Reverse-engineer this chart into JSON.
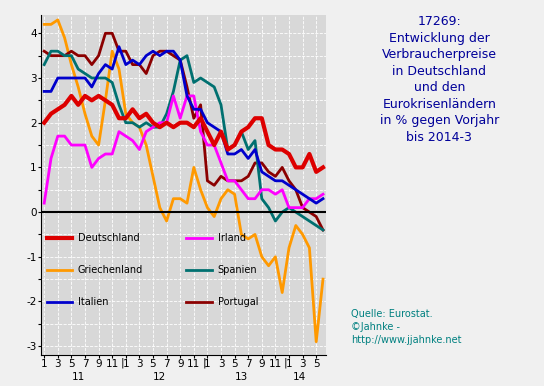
{
  "title_right": "17269:\nEntwicklung der\nVerbraucherpreise\nin Deutschland\nund den\nEurokrisenländern\nin % gegen Vorjahr\nbis 2014-3",
  "source_text": "Quelle: Eurostat.\n©Jahnke -\nhttp://www.jjahnke.net",
  "ylim": [
    -3.2,
    4.4
  ],
  "series": {
    "Deutschland": {
      "color": "#dd0000",
      "lw": 3.0,
      "data": [
        2.0,
        2.2,
        2.3,
        2.4,
        2.6,
        2.4,
        2.6,
        2.5,
        2.6,
        2.5,
        2.4,
        2.1,
        2.1,
        2.3,
        2.1,
        2.2,
        2.0,
        1.9,
        2.0,
        1.9,
        2.0,
        2.0,
        1.9,
        2.1,
        1.8,
        1.5,
        1.8,
        1.4,
        1.5,
        1.8,
        1.9,
        2.1,
        2.1,
        1.5,
        1.4,
        1.4,
        1.3,
        1.0,
        1.0,
        1.3,
        0.9,
        1.0
      ]
    },
    "Griechenland": {
      "color": "#ff9900",
      "lw": 2.0,
      "data": [
        4.2,
        4.2,
        4.3,
        3.9,
        3.3,
        2.8,
        2.2,
        1.7,
        1.5,
        2.5,
        3.6,
        3.2,
        2.2,
        2.0,
        1.9,
        1.5,
        0.8,
        0.1,
        -0.2,
        0.3,
        0.3,
        0.2,
        1.0,
        0.5,
        0.1,
        -0.1,
        0.3,
        0.5,
        0.4,
        -0.5,
        -0.6,
        -0.5,
        -1.0,
        -1.2,
        -1.0,
        -1.8,
        -0.8,
        -0.3,
        -0.5,
        -0.8,
        -2.9,
        -1.5
      ]
    },
    "Italien": {
      "color": "#0000cc",
      "lw": 2.0,
      "data": [
        2.7,
        2.7,
        3.0,
        3.0,
        3.0,
        3.0,
        3.0,
        2.8,
        3.1,
        3.3,
        3.2,
        3.7,
        3.3,
        3.4,
        3.3,
        3.5,
        3.6,
        3.5,
        3.6,
        3.6,
        3.4,
        2.6,
        2.3,
        2.3,
        2.0,
        1.9,
        1.8,
        1.3,
        1.3,
        1.4,
        1.2,
        1.4,
        0.9,
        0.8,
        0.7,
        0.7,
        0.6,
        0.5,
        0.4,
        0.3,
        0.2,
        0.3
      ]
    },
    "Irland": {
      "color": "#ff00ff",
      "lw": 2.0,
      "data": [
        0.2,
        1.2,
        1.7,
        1.7,
        1.5,
        1.5,
        1.5,
        1.0,
        1.2,
        1.3,
        1.3,
        1.8,
        1.7,
        1.6,
        1.4,
        1.8,
        1.9,
        2.0,
        2.0,
        2.6,
        2.1,
        2.6,
        2.6,
        1.8,
        1.5,
        1.5,
        1.1,
        0.7,
        0.7,
        0.5,
        0.3,
        0.3,
        0.5,
        0.5,
        0.4,
        0.5,
        0.1,
        0.1,
        0.1,
        0.3,
        0.3,
        0.4
      ]
    },
    "Spanien": {
      "color": "#007070",
      "lw": 2.0,
      "data": [
        3.3,
        3.6,
        3.6,
        3.5,
        3.5,
        3.2,
        3.1,
        3.0,
        3.0,
        3.0,
        2.9,
        2.4,
        2.0,
        2.0,
        1.9,
        2.0,
        1.9,
        1.9,
        2.2,
        2.7,
        3.4,
        3.5,
        2.9,
        3.0,
        2.9,
        2.8,
        2.4,
        1.4,
        1.5,
        1.8,
        1.4,
        1.6,
        0.3,
        0.1,
        -0.2,
        0.0,
        0.1,
        0.0,
        -0.1,
        -0.2,
        -0.3,
        -0.4
      ]
    },
    "Portugal": {
      "color": "#8B0000",
      "lw": 2.0,
      "data": [
        3.6,
        3.5,
        3.5,
        3.5,
        3.6,
        3.5,
        3.5,
        3.3,
        3.5,
        4.0,
        4.0,
        3.6,
        3.6,
        3.3,
        3.3,
        3.1,
        3.5,
        3.6,
        3.6,
        3.5,
        3.4,
        2.8,
        2.1,
        2.4,
        0.7,
        0.6,
        0.8,
        0.7,
        0.7,
        0.7,
        0.8,
        1.1,
        1.1,
        0.9,
        0.8,
        1.0,
        0.7,
        0.5,
        0.1,
        0.0,
        -0.1,
        -0.4
      ]
    }
  },
  "ytick_positions": [
    -3.0,
    -2.5,
    -2.0,
    -1.5,
    -1.0,
    -0.5,
    0.0,
    0.5,
    1.0,
    1.5,
    2.0,
    2.5,
    3.0,
    3.5,
    4.0
  ],
  "legend_entries": [
    {
      "label": "Deutschland",
      "color": "#dd0000",
      "lw": 3.0
    },
    {
      "label": "Irland",
      "color": "#ff00ff",
      "lw": 2.0
    },
    {
      "label": "Griechenland",
      "color": "#ff9900",
      "lw": 2.0
    },
    {
      "label": "Spanien",
      "color": "#007070",
      "lw": 2.0
    },
    {
      "label": "Italien",
      "color": "#0000cc",
      "lw": 2.0
    },
    {
      "label": "Portugal",
      "color": "#8B0000",
      "lw": 2.0
    }
  ]
}
